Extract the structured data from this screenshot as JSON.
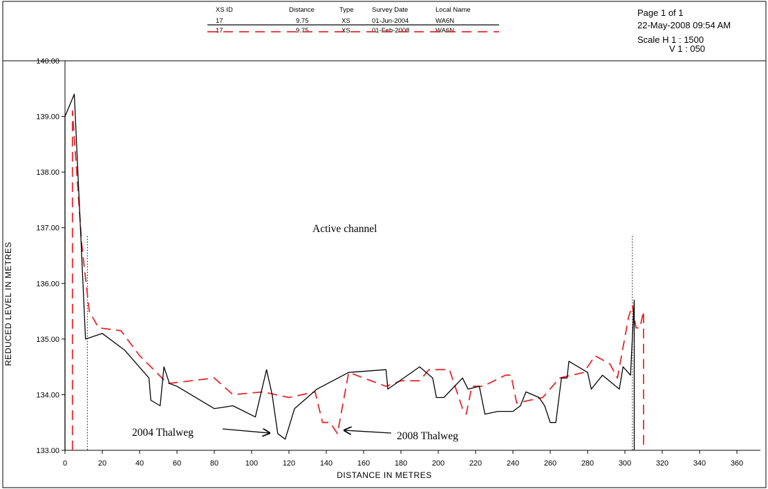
{
  "header": {
    "columns": [
      "XS ID",
      "Distance",
      "Type",
      "Survey Date",
      "Local Name"
    ],
    "rows": [
      {
        "xs_id": "17",
        "distance": "9.75",
        "type": "XS",
        "survey_date": "01-Jun-2004",
        "local_name": "WA6N",
        "color": "#000000",
        "style": "solid"
      },
      {
        "xs_id": "17",
        "distance": "9.75",
        "type": "XS",
        "survey_date": "01-Feb-2008",
        "local_name": "WA6N",
        "color": "#e8262b",
        "style": "dashed"
      }
    ]
  },
  "page_info": {
    "page": "Page 1 of 1",
    "datetime": "22-May-2008 09:54 AM",
    "scale_h": "Scale H 1 : 1500",
    "scale_v": "V 1 : 050"
  },
  "annotations": {
    "active_channel": "Active channel",
    "thalweg_2004": "2004 Thalweg",
    "thalweg_2008": "2008 Thalweg"
  },
  "chart_data": {
    "type": "line",
    "xlabel": "DISTANCE IN METRES",
    "ylabel": "REDUCED LEVEL IN METRES",
    "xlim": [
      0,
      360
    ],
    "ylim": [
      133.0,
      140.0
    ],
    "x_ticks": [
      0,
      20,
      40,
      60,
      80,
      100,
      120,
      140,
      160,
      180,
      200,
      220,
      240,
      260,
      280,
      300,
      320,
      340,
      360
    ],
    "y_ticks": [
      "133.00",
      "134.00",
      "135.00",
      "136.00",
      "137.00",
      "138.00",
      "139.00",
      "140.00"
    ],
    "grid": false,
    "series": [
      {
        "name": "01-Jun-2004",
        "color": "#000000",
        "dash": "solid",
        "points": [
          [
            0,
            133.0
          ],
          [
            0,
            139.0
          ],
          [
            5,
            139.4
          ],
          [
            11,
            135.0
          ],
          [
            20,
            135.1
          ],
          [
            32,
            134.8
          ],
          [
            45,
            134.3
          ],
          [
            46,
            133.9
          ],
          [
            51,
            133.8
          ],
          [
            53,
            134.5
          ],
          [
            56,
            134.2
          ],
          [
            60,
            134.15
          ],
          [
            80,
            133.75
          ],
          [
            90,
            133.8
          ],
          [
            102,
            133.6
          ],
          [
            108,
            134.45
          ],
          [
            111,
            134.0
          ],
          [
            114,
            133.3
          ],
          [
            118,
            133.2
          ],
          [
            123,
            133.75
          ],
          [
            135,
            134.1
          ],
          [
            152,
            134.4
          ],
          [
            172,
            134.45
          ],
          [
            173,
            134.1
          ],
          [
            190,
            134.5
          ],
          [
            197,
            134.3
          ],
          [
            199,
            133.95
          ],
          [
            203,
            133.95
          ],
          [
            213,
            134.3
          ],
          [
            216,
            134.1
          ],
          [
            222,
            134.15
          ],
          [
            225,
            133.65
          ],
          [
            232,
            133.7
          ],
          [
            240,
            133.7
          ],
          [
            244,
            133.8
          ],
          [
            247,
            134.05
          ],
          [
            254,
            133.95
          ],
          [
            257,
            133.8
          ],
          [
            260,
            133.5
          ],
          [
            263,
            133.5
          ],
          [
            266,
            134.3
          ],
          [
            269,
            134.3
          ],
          [
            270,
            134.6
          ],
          [
            280,
            134.4
          ],
          [
            282,
            134.1
          ],
          [
            288,
            134.35
          ],
          [
            297,
            134.1
          ],
          [
            299,
            134.5
          ],
          [
            303,
            134.35
          ],
          [
            305,
            135.7
          ],
          [
            305,
            133.0
          ]
        ]
      },
      {
        "name": "01-Feb-2008",
        "color": "#e8262b",
        "dash": "dashed",
        "points": [
          [
            4,
            133.0
          ],
          [
            4,
            139.1
          ],
          [
            9,
            136.7
          ],
          [
            13,
            135.5
          ],
          [
            18,
            135.2
          ],
          [
            30,
            135.15
          ],
          [
            40,
            134.7
          ],
          [
            55,
            134.2
          ],
          [
            80,
            134.3
          ],
          [
            90,
            134.0
          ],
          [
            106,
            134.05
          ],
          [
            120,
            133.95
          ],
          [
            134,
            134.05
          ],
          [
            138,
            133.5
          ],
          [
            142,
            133.5
          ],
          [
            146,
            133.3
          ],
          [
            152,
            134.4
          ],
          [
            168,
            134.2
          ],
          [
            172,
            134.15
          ],
          [
            180,
            134.25
          ],
          [
            190,
            134.25
          ],
          [
            195,
            134.45
          ],
          [
            206,
            134.45
          ],
          [
            213,
            133.75
          ],
          [
            215,
            133.65
          ],
          [
            218,
            134.15
          ],
          [
            224,
            134.15
          ],
          [
            236,
            134.35
          ],
          [
            239,
            134.35
          ],
          [
            242,
            133.85
          ],
          [
            256,
            133.95
          ],
          [
            265,
            134.3
          ],
          [
            278,
            134.4
          ],
          [
            284,
            134.7
          ],
          [
            292,
            134.55
          ],
          [
            296,
            134.3
          ],
          [
            302,
            135.4
          ],
          [
            304,
            135.6
          ],
          [
            306,
            135.2
          ],
          [
            308,
            135.2
          ],
          [
            310,
            135.5
          ],
          [
            310,
            133.0
          ]
        ]
      }
    ],
    "reference_lines": [
      {
        "x": 12,
        "y_top": 136.85,
        "style": "dotted"
      },
      {
        "x": 304,
        "y_top": 136.85,
        "style": "dotted"
      }
    ]
  }
}
